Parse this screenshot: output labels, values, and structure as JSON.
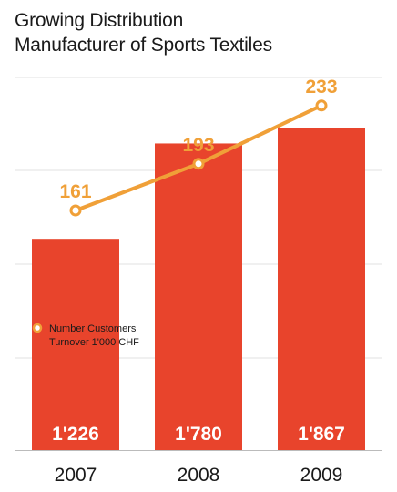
{
  "title_lines": [
    "Growing Distribution",
    "Manufacturer of Sports Textiles"
  ],
  "chart_data": {
    "type": "bar",
    "categories": [
      "2007",
      "2008",
      "2009"
    ],
    "series": [
      {
        "name": "Turnover 1'000 CHF",
        "kind": "bar",
        "values": [
          1226,
          1780,
          1867
        ],
        "labels": [
          "1'226",
          "1'780",
          "1'867"
        ],
        "color": "#e8442c"
      },
      {
        "name": "Number Customers",
        "kind": "line",
        "values": [
          161,
          193,
          233
        ],
        "labels": [
          "161",
          "193",
          "233"
        ],
        "color": "#f0a038"
      }
    ],
    "legend_position": "left",
    "grid": true,
    "axis_color": "#bbbbbb",
    "grid_color": "#e2e2e2"
  }
}
